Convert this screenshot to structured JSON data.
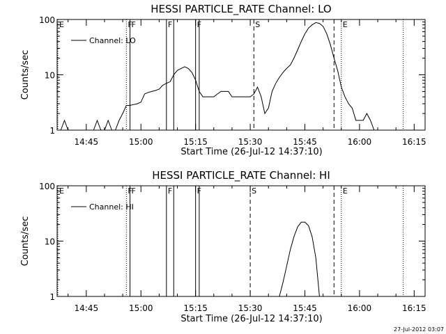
{
  "chart_data": [
    {
      "type": "line",
      "title": "HESSI PARTICLE_RATE Channel: LO",
      "xlabel": "Start Time (26-Jul-12 14:37:10)",
      "ylabel": "Counts/sec",
      "x_unit": "minutes",
      "xlim": [
        "14:37",
        "16:18"
      ],
      "ylim": [
        1,
        100
      ],
      "y_scale": "log",
      "x_ticks": [
        "14:45",
        "15:00",
        "15:15",
        "15:30",
        "15:45",
        "16:00",
        "16:15"
      ],
      "y_ticks": [
        "1",
        "10",
        "100"
      ],
      "grid": false,
      "legend": {
        "position": "top-left",
        "entries": [
          "Channel: LO"
        ]
      },
      "series": [
        {
          "name": "Channel: LO",
          "x": [
            "14:37",
            "14:38",
            "14:39",
            "14:40",
            "14:41",
            "14:42",
            "14:43",
            "14:44",
            "14:45",
            "14:46",
            "14:47",
            "14:48",
            "14:49",
            "14:50",
            "14:51",
            "14:52",
            "14:53",
            "14:54",
            "14:55",
            "14:56",
            "14:57",
            "14:58",
            "14:59",
            "15:00",
            "15:01",
            "15:02",
            "15:03",
            "15:04",
            "15:05",
            "15:06",
            "15:07",
            "15:08",
            "15:09",
            "15:10",
            "15:11",
            "15:12",
            "15:13",
            "15:14",
            "15:15",
            "15:16",
            "15:17",
            "15:18",
            "15:19",
            "15:20",
            "15:21",
            "15:22",
            "15:23",
            "15:24",
            "15:25",
            "15:26",
            "15:27",
            "15:28",
            "15:29",
            "15:30",
            "15:31",
            "15:32",
            "15:33",
            "15:34",
            "15:35",
            "15:36",
            "15:37",
            "15:38",
            "15:39",
            "15:40",
            "15:41",
            "15:42",
            "15:43",
            "15:44",
            "15:45",
            "15:46",
            "15:47",
            "15:48",
            "15:49",
            "15:50",
            "15:51",
            "15:52",
            "15:53",
            "15:54",
            "15:55",
            "15:56",
            "15:57",
            "15:58",
            "15:59",
            "16:00",
            "16:01",
            "16:02",
            "16:03",
            "16:04",
            "16:05",
            "16:06",
            "16:07",
            "16:08"
          ],
          "y": [
            1,
            1,
            1.5,
            1,
            1,
            1,
            1,
            1,
            1,
            1,
            1,
            1.5,
            1,
            1,
            1.5,
            1,
            1,
            1.5,
            2,
            2.8,
            2.8,
            2.9,
            3,
            3.2,
            4.5,
            4.8,
            5,
            5.2,
            5.5,
            6.5,
            7,
            7.5,
            10,
            12,
            13,
            14,
            13,
            11,
            8,
            5,
            4,
            4,
            4,
            4,
            4.5,
            5,
            5,
            5,
            4,
            4,
            4,
            4,
            4,
            4,
            4.5,
            6,
            4,
            2,
            2.5,
            5,
            7,
            9,
            11,
            13,
            15,
            20,
            28,
            40,
            55,
            70,
            80,
            88,
            85,
            75,
            55,
            35,
            20,
            12,
            6,
            4,
            3,
            2.5,
            1.5,
            1.5,
            1.5,
            2,
            1.5,
            1,
            1,
            1,
            1,
            1
          ]
        }
      ],
      "markers": [
        {
          "label": "E",
          "x": "14:37",
          "style": "dotted"
        },
        {
          "label": "F",
          "x": "14:56",
          "style": "dotted"
        },
        {
          "label": "F",
          "x": "14:57",
          "style": "solid"
        },
        {
          "label": "F",
          "x": "15:07",
          "style": "solid"
        },
        {
          "label": "",
          "x": "15:09",
          "style": "solid"
        },
        {
          "label": "F",
          "x": "15:15",
          "style": "solid"
        },
        {
          "label": "",
          "x": "15:16",
          "style": "solid"
        },
        {
          "label": "S",
          "x": "15:31",
          "style": "dashed"
        },
        {
          "label": "",
          "x": "15:53",
          "style": "dashed"
        },
        {
          "label": "E",
          "x": "15:55",
          "style": "dotted"
        },
        {
          "label": "",
          "x": "16:12",
          "style": "dotted"
        }
      ]
    },
    {
      "type": "line",
      "title": "HESSI PARTICLE_RATE Channel: HI",
      "xlabel": "Start Time (26-Jul-12 14:37:10)",
      "ylabel": "Counts/sec",
      "x_unit": "minutes",
      "xlim": [
        "14:37",
        "16:18"
      ],
      "ylim": [
        1,
        100
      ],
      "y_scale": "log",
      "x_ticks": [
        "14:45",
        "15:00",
        "15:15",
        "15:30",
        "15:45",
        "16:00",
        "16:15"
      ],
      "y_ticks": [
        "1",
        "10",
        "100"
      ],
      "grid": false,
      "legend": {
        "position": "top-left",
        "entries": [
          "Channel: HI"
        ]
      },
      "series": [
        {
          "name": "Channel: HI",
          "x": [
            "15:38",
            "15:39",
            "15:40",
            "15:41",
            "15:42",
            "15:43",
            "15:44",
            "15:45",
            "15:46",
            "15:47",
            "15:48",
            "15:49"
          ],
          "y": [
            1,
            1.8,
            3.5,
            7,
            12,
            18,
            22,
            22,
            19,
            12,
            5,
            1
          ]
        }
      ],
      "markers": [
        {
          "label": "E",
          "x": "14:37",
          "style": "dotted"
        },
        {
          "label": "F",
          "x": "14:56",
          "style": "dotted"
        },
        {
          "label": "F",
          "x": "14:57",
          "style": "solid"
        },
        {
          "label": "F",
          "x": "15:07",
          "style": "solid"
        },
        {
          "label": "",
          "x": "15:09",
          "style": "solid"
        },
        {
          "label": "F",
          "x": "15:15",
          "style": "solid"
        },
        {
          "label": "",
          "x": "15:16",
          "style": "solid"
        },
        {
          "label": "S",
          "x": "15:30",
          "style": "dashed"
        },
        {
          "label": "",
          "x": "15:53",
          "style": "dashed"
        },
        {
          "label": "E",
          "x": "15:55",
          "style": "dotted"
        },
        {
          "label": "",
          "x": "16:12",
          "style": "dotted"
        }
      ]
    }
  ],
  "footer": {
    "timestamp": "27-Jul-2012 03:07"
  }
}
